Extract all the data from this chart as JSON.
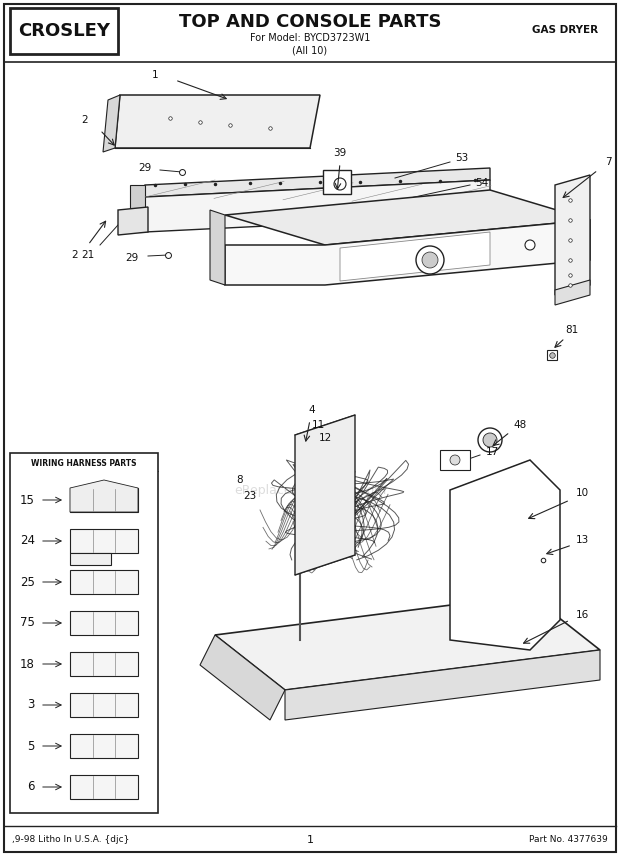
{
  "title": "TOP AND CONSOLE PARTS",
  "subtitle1": "For Model: BYCD3723W1",
  "subtitle2": "(All 10)",
  "brand": "CROSLEY",
  "top_right": "GAS DRYER",
  "footer_left": ",9-98 Litho In U.S.A. {djc}",
  "footer_center": "1",
  "footer_right": "Part No. 4377639",
  "wiring_box_title": "WIRING HARNESS PARTS",
  "wiring_parts": [
    {
      "num": "15",
      "yf": 0.835
    },
    {
      "num": "24",
      "yf": 0.735
    },
    {
      "num": "25",
      "yf": 0.635
    },
    {
      "num": "75",
      "yf": 0.535
    },
    {
      "num": "18",
      "yf": 0.455
    },
    {
      "num": "3",
      "yf": 0.355
    },
    {
      "num": "5",
      "yf": 0.255
    },
    {
      "num": "6",
      "yf": 0.135
    }
  ],
  "bg_color": "#ffffff",
  "line_color": "#222222",
  "text_color": "#111111"
}
